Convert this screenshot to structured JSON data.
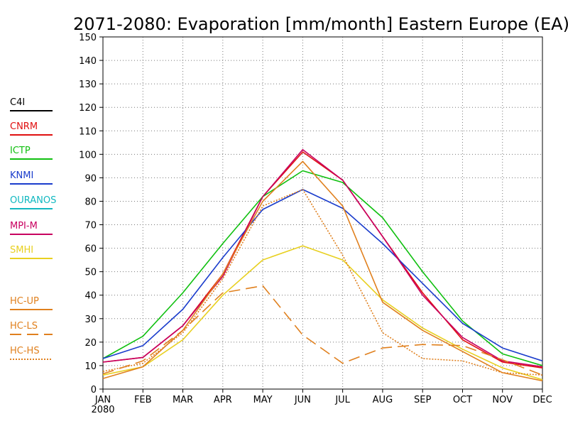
{
  "chart_data": {
    "type": "line",
    "title": "2071-2080: Evaporation [mm/month] Eastern Europe (EA)",
    "xlabel": "",
    "ylabel": "",
    "categories": [
      "JAN",
      "FEB",
      "MAR",
      "APR",
      "MAY",
      "JUN",
      "JUL",
      "AUG",
      "SEP",
      "OCT",
      "NOV",
      "DEC"
    ],
    "x_sublabel": "2080",
    "ylim": [
      0,
      150
    ],
    "yticks": [
      0,
      10,
      20,
      30,
      40,
      50,
      60,
      70,
      80,
      90,
      100,
      110,
      120,
      130,
      140,
      150
    ],
    "grid": true,
    "legend_placement": "left",
    "series": [
      {
        "name": "C4I",
        "color": "#000000",
        "dash": "solid",
        "values": null
      },
      {
        "name": "CNRM",
        "color": "#e01010",
        "dash": "solid",
        "values": [
          11.5,
          13.5,
          27,
          49,
          82,
          101,
          89,
          65,
          41,
          21,
          11.5,
          9
        ]
      },
      {
        "name": "ICTP",
        "color": "#10c010",
        "dash": "solid",
        "values": [
          13,
          22.5,
          41,
          62,
          82,
          93,
          88,
          73,
          50,
          29,
          15,
          10
        ]
      },
      {
        "name": "KNMI",
        "color": "#1a3ccc",
        "dash": "solid",
        "values": [
          13,
          18.5,
          34,
          56,
          76.5,
          85,
          77,
          62,
          45,
          28,
          17.5,
          12
        ]
      },
      {
        "name": "OURANOS",
        "color": "#10b8c0",
        "dash": "solid",
        "values": null
      },
      {
        "name": "MPI-M",
        "color": "#c80060",
        "dash": "solid",
        "values": [
          11.5,
          13.5,
          27,
          48,
          82,
          102,
          89,
          65,
          40,
          22,
          12,
          9.5
        ]
      },
      {
        "name": "SMHI",
        "color": "#e8d020",
        "dash": "solid",
        "values": [
          6,
          9.5,
          21,
          40,
          55,
          61,
          55,
          38,
          26,
          17,
          9,
          4
        ]
      },
      {
        "name": "HC-UP",
        "color": "#e0801e",
        "dash": "solid",
        "values": [
          4.5,
          9.5,
          25,
          49,
          80,
          97,
          78,
          37,
          25,
          16,
          7,
          3.5
        ]
      },
      {
        "name": "HC-LS",
        "color": "#e0801e",
        "dash": "long",
        "values": [
          6.5,
          12,
          25,
          41,
          44,
          23,
          11,
          17.5,
          19,
          18.5,
          12.5,
          6
        ]
      },
      {
        "name": "HC-HS",
        "color": "#e0801e",
        "dash": "dot",
        "values": [
          7.5,
          11,
          24,
          47,
          78,
          85,
          57,
          24,
          13,
          12,
          7,
          6
        ]
      }
    ]
  }
}
